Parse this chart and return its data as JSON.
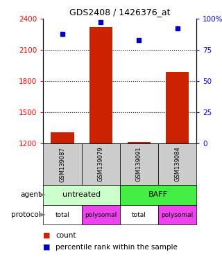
{
  "title": "GDS2408 / 1426376_at",
  "samples": [
    "GSM139087",
    "GSM139079",
    "GSM139091",
    "GSM139084"
  ],
  "count_values": [
    1310,
    2320,
    1215,
    1890
  ],
  "percentile_values": [
    88,
    97,
    83,
    92
  ],
  "ylim_left": [
    1200,
    2400
  ],
  "ylim_right": [
    0,
    100
  ],
  "yticks_left": [
    1200,
    1500,
    1800,
    2100,
    2400
  ],
  "yticks_right": [
    0,
    25,
    50,
    75,
    100
  ],
  "ytick_labels_right": [
    "0",
    "25",
    "50",
    "75",
    "100%"
  ],
  "bar_color": "#cc2200",
  "dot_color": "#0000cc",
  "bar_bottom": 1200,
  "agent_untreated_color": "#ccffcc",
  "agent_baff_color": "#44ee44",
  "protocol_total_color": "#ffffff",
  "protocol_polysomal_color": "#ee44ee",
  "sample_bg_color": "#cccccc",
  "legend_count_color": "#cc2200",
  "legend_pct_color": "#0000cc",
  "agent_row": [
    "untreated",
    "untreated",
    "BAFF",
    "BAFF"
  ],
  "protocol_row": [
    "total",
    "polysomal",
    "total",
    "polysomal"
  ],
  "fig_bg": "#ffffff"
}
